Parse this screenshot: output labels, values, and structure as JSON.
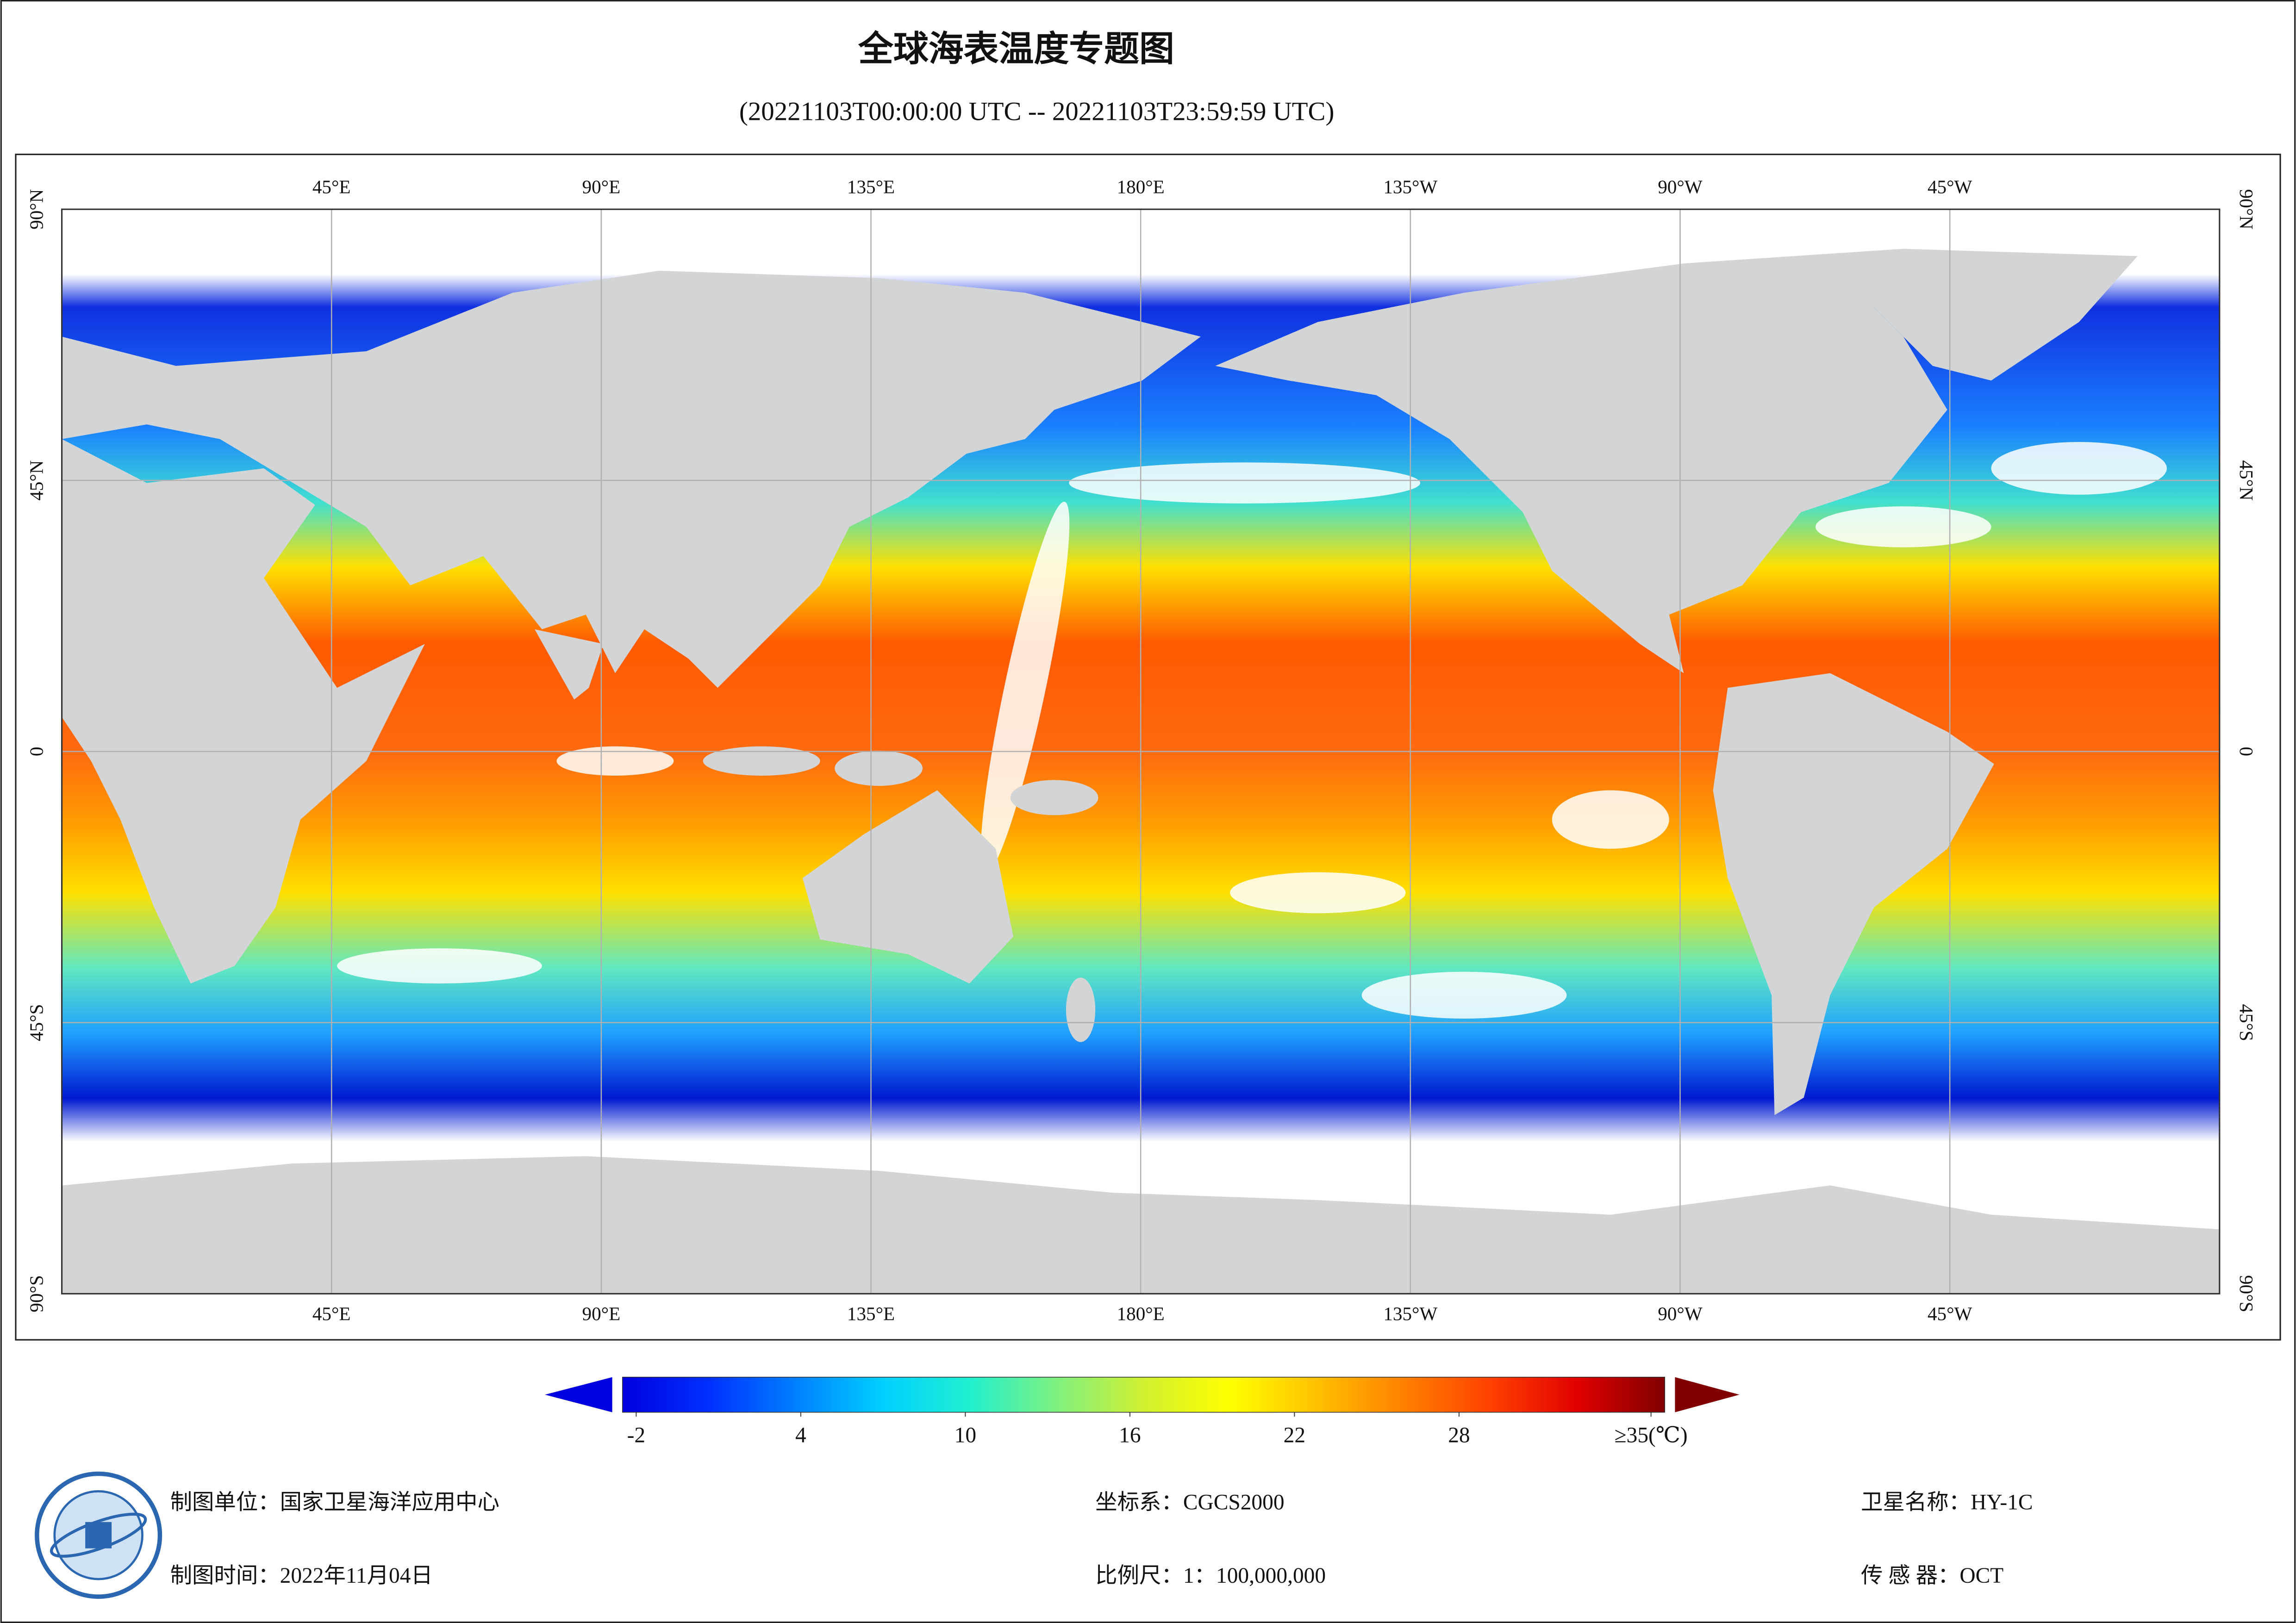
{
  "title": "全球海表温度专题图",
  "subtitle": "(20221103T00:00:00 UTC -- 20221103T23:59:59 UTC)",
  "map": {
    "lon_ticks": [
      {
        "value": 45,
        "label": "45°E"
      },
      {
        "value": 90,
        "label": "90°E"
      },
      {
        "value": 135,
        "label": "135°E"
      },
      {
        "value": 180,
        "label": "180°E"
      },
      {
        "value": 225,
        "label": "135°W"
      },
      {
        "value": 270,
        "label": "90°W"
      },
      {
        "value": 315,
        "label": "45°W"
      }
    ],
    "lat_ticks": [
      {
        "value": 90,
        "label": "90°N"
      },
      {
        "value": 45,
        "label": "45°N"
      },
      0,
      {
        "value": -45,
        "label": "45°S"
      },
      {
        "value": -90,
        "label": "90°S"
      }
    ]
  },
  "colorbar": {
    "clim": [
      -2.5,
      35.5
    ],
    "ticks": [
      -2,
      4,
      10,
      16,
      22,
      28,
      {
        "value": 35,
        "label": "≥35(℃)"
      }
    ],
    "colors": [
      "#0000e0",
      "#0030ff",
      "#0080ff",
      "#00d0ff",
      "#20f0d0",
      "#80f080",
      "#d0f030",
      "#ffff00",
      "#ffc000",
      "#ff8000",
      "#ff4000",
      "#e00000",
      "#800000"
    ]
  },
  "footer": {
    "producer": "制图单位：国家卫星海洋应用中心",
    "date": "制图时间：2022年11月04日",
    "crs": "坐标系：CGCS2000",
    "scale": "比例尺：1：100,000,000",
    "satellite": "卫星名称：HY-1C",
    "sensor": "传 感 器：OCT"
  }
}
